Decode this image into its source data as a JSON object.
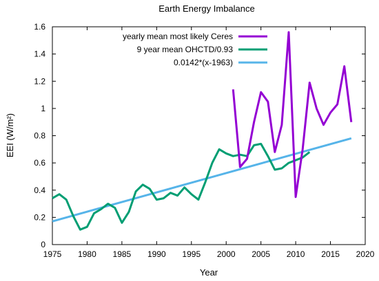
{
  "chart_data": {
    "type": "line",
    "title": "Earth Energy Imbalance",
    "xlabel": "Year",
    "ylabel": "EEI (W/m²)",
    "xlim": [
      1975,
      2020
    ],
    "ylim": [
      0,
      1.6
    ],
    "xticks": [
      "1975",
      "1980",
      "1985",
      "1990",
      "1995",
      "2000",
      "2005",
      "2010",
      "2015",
      "2020"
    ],
    "yticks": [
      "0",
      "0.2",
      "0.4",
      "0.6",
      "0.8",
      "1",
      "1.2",
      "1.4",
      "1.6"
    ],
    "grid": false,
    "legend_position": "top-right",
    "series": [
      {
        "name": "yearly mean most likely Ceres",
        "color": "#9400d3",
        "x": [
          2001,
          2002,
          2003,
          2004,
          2005,
          2006,
          2007,
          2008,
          2009,
          2010,
          2011,
          2012,
          2013,
          2014,
          2015,
          2016,
          2017,
          2018
        ],
        "y": [
          1.14,
          0.57,
          0.63,
          0.9,
          1.12,
          1.05,
          0.68,
          0.88,
          1.56,
          0.35,
          0.7,
          1.19,
          1.0,
          0.88,
          0.97,
          1.03,
          1.31,
          0.9
        ]
      },
      {
        "name": "9 year mean OHCTD/0.93",
        "color": "#009e73",
        "x": [
          1975,
          1976,
          1977,
          1978,
          1979,
          1980,
          1981,
          1982,
          1983,
          1984,
          1985,
          1986,
          1987,
          1988,
          1989,
          1990,
          1991,
          1992,
          1993,
          1994,
          1995,
          1996,
          1997,
          1998,
          1999,
          2000,
          2001,
          2002,
          2003,
          2004,
          2005,
          2006,
          2007,
          2008,
          2009,
          2010,
          2011,
          2012
        ],
        "y": [
          0.34,
          0.37,
          0.33,
          0.21,
          0.11,
          0.13,
          0.23,
          0.26,
          0.3,
          0.27,
          0.16,
          0.24,
          0.39,
          0.44,
          0.41,
          0.33,
          0.34,
          0.38,
          0.36,
          0.42,
          0.37,
          0.33,
          0.46,
          0.6,
          0.7,
          0.67,
          0.65,
          0.66,
          0.65,
          0.73,
          0.74,
          0.65,
          0.55,
          0.56,
          0.6,
          0.62,
          0.64,
          0.68
        ]
      },
      {
        "name": "0.0142*(x-1963)",
        "color": "#56b4e9",
        "x": [
          1975,
          2018
        ],
        "y": [
          0.1704,
          0.781
        ]
      }
    ]
  }
}
